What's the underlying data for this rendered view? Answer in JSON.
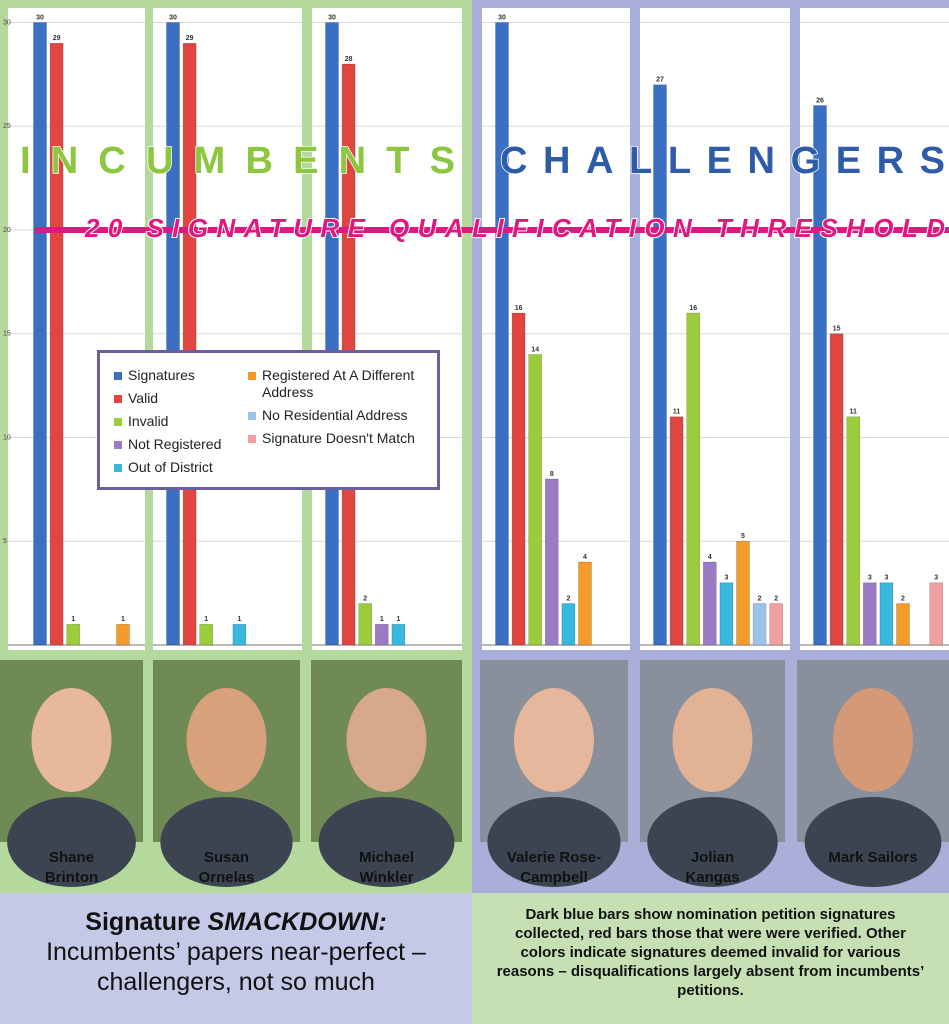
{
  "chart_data": {
    "type": "bar",
    "categories": [
      "Shane Brinton",
      "Susan Ornelas",
      "Michael Winkler",
      "Valerie Rose-Campbell",
      "Jolian Kangas",
      "Mark Sailors"
    ],
    "group_labels": [
      "INCUMBENTS",
      "CHALLENGERS"
    ],
    "series": [
      {
        "name": "Signatures",
        "color": "#3a6fc4",
        "values": [
          30,
          30,
          30,
          30,
          27,
          26
        ]
      },
      {
        "name": "Valid",
        "color": "#e0453f",
        "values": [
          29,
          29,
          28,
          16,
          11,
          15
        ]
      },
      {
        "name": "Invalid",
        "color": "#9ccc3c",
        "values": [
          1,
          1,
          2,
          14,
          16,
          11
        ]
      },
      {
        "name": "Not Registered",
        "color": "#9a7cc4",
        "values": [
          null,
          null,
          1,
          8,
          4,
          3
        ]
      },
      {
        "name": "Out of District",
        "color": "#38b7df",
        "values": [
          null,
          1,
          1,
          2,
          3,
          3
        ]
      },
      {
        "name": "Registered At A Different Address",
        "color": "#f39a2b",
        "values": [
          1,
          null,
          null,
          4,
          5,
          2
        ]
      },
      {
        "name": "No Residential Address",
        "color": "#9ec3ea",
        "values": [
          null,
          null,
          null,
          null,
          2,
          null
        ]
      },
      {
        "name": "Signature Doesn't Match",
        "color": "#f0a0a0",
        "values": [
          null,
          null,
          null,
          null,
          2,
          3
        ]
      }
    ],
    "ylim": [
      0,
      30.7
    ],
    "yticks": [
      5,
      10,
      15,
      20,
      25,
      30
    ],
    "grid": true,
    "threshold": {
      "value": 20,
      "label": "20 SIGNATURE QUALIFICATION THRESHOLD"
    },
    "title": {
      "lead": "Signature",
      "emphasis": "SMACKDOWN:"
    },
    "subtitle": "Incumbents’ papers near-perfect – challengers, not so much",
    "caption": "Dark blue bars show nomination petition signatures collected, red bars those that were were verified. Other colors indicate signatures deemed invalid for various reasons – disqualifications largely absent from incumbents’ petitions."
  }
}
